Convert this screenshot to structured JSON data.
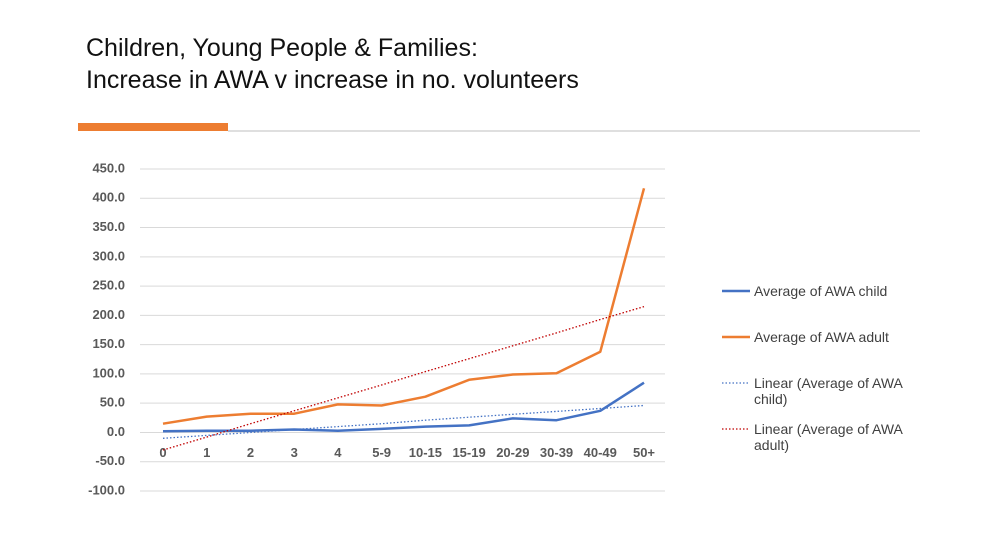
{
  "chart_data": {
    "type": "line",
    "title": [
      "Children, Young People & Families:",
      "Increase in AWA v increase in no. volunteers"
    ],
    "categories": [
      "0",
      "1",
      "2",
      "3",
      "4",
      "5-9",
      "10-15",
      "15-19",
      "20-29",
      "30-39",
      "40-49",
      "50+"
    ],
    "series": [
      {
        "name": "Average of AWA child",
        "color": "#4472c4",
        "dash": "solid",
        "values": [
          2,
          3,
          3,
          5,
          3,
          6,
          10,
          12,
          24,
          21,
          37,
          85
        ]
      },
      {
        "name": "Average of AWA adult",
        "color": "#ed7d31",
        "dash": "solid",
        "values": [
          15,
          27,
          32,
          32,
          48,
          46,
          61,
          90,
          99,
          101,
          138,
          417
        ]
      },
      {
        "name": "Linear (Average of AWA child)",
        "color": "#4472c4",
        "dash": "dotted",
        "values": [
          -10,
          -5,
          0,
          5,
          10,
          15,
          21,
          26,
          31,
          36,
          41,
          46
        ]
      },
      {
        "name": "Linear (Average of AWA adult)",
        "color": "#c00000",
        "dash": "dotted",
        "values": [
          -30,
          -8,
          15,
          37,
          59,
          81,
          104,
          126,
          148,
          170,
          193,
          215
        ]
      }
    ],
    "ylim": [
      -100,
      450
    ],
    "yticks": [
      {
        "value": -100,
        "label": "-100.0"
      },
      {
        "value": -50,
        "label": "-50.0"
      },
      {
        "value": 0,
        "label": "0.0"
      },
      {
        "value": 50,
        "label": "50.0"
      },
      {
        "value": 100,
        "label": "100.0"
      },
      {
        "value": 150,
        "label": "150.0"
      },
      {
        "value": 200,
        "label": "200.0"
      },
      {
        "value": 250,
        "label": "250.0"
      },
      {
        "value": 300,
        "label": "300.0"
      },
      {
        "value": 350,
        "label": "350.0"
      },
      {
        "value": 400,
        "label": "400.0"
      },
      {
        "value": 450,
        "label": "450.0"
      }
    ],
    "grid": true,
    "legend": "right"
  }
}
